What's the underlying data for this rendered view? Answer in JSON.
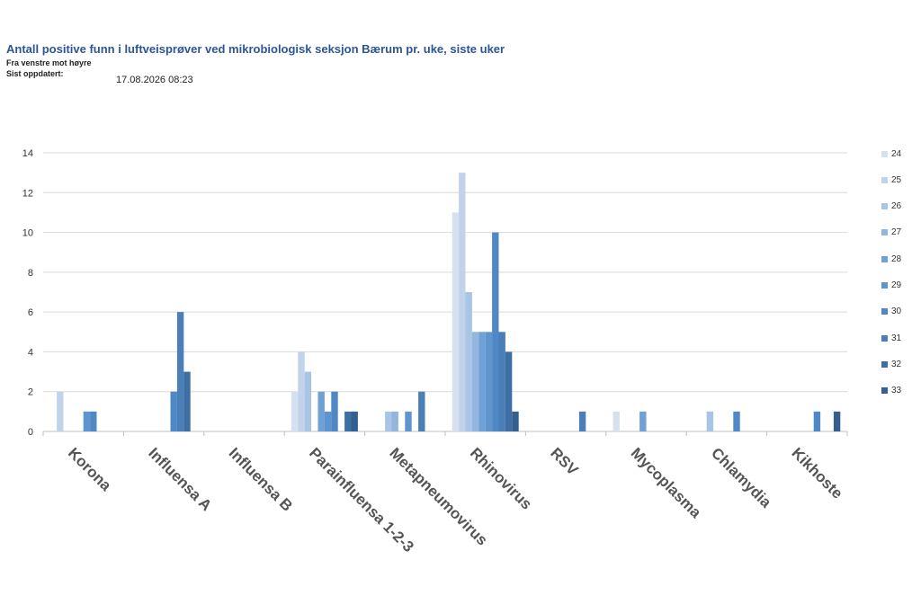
{
  "header": {
    "title": "Antall positive funn i luftveisprøver ved mikrobiologisk seksjon Bærum pr. uke, siste uker",
    "subtitle": "Fra venstre mot høyre",
    "updated_label": "Sist oppdatert:",
    "updated_value": "17.08.2026 08:23"
  },
  "chart_data": {
    "type": "bar",
    "categories": [
      "Korona",
      "Influensa A",
      "Influensa B",
      "Parainfluensa 1-2-3",
      "Metapneumovirus",
      "Rhinovirus",
      "RSV",
      "Mycoplasma",
      "Chlamydia",
      "Kikhoste"
    ],
    "ylim": [
      0,
      14
    ],
    "yticks": [
      0,
      2,
      4,
      6,
      8,
      10,
      12,
      14
    ],
    "grid": true,
    "legend_position": "right",
    "series": [
      {
        "name": "24",
        "color": "#d6e1ef",
        "values": [
          0,
          0,
          0,
          2,
          0,
          11,
          0,
          1,
          0,
          0
        ]
      },
      {
        "name": "25",
        "color": "#c0d3ea",
        "values": [
          2,
          0,
          0,
          4,
          0,
          13,
          0,
          0,
          0,
          0
        ]
      },
      {
        "name": "26",
        "color": "#a9c4e4",
        "values": [
          0,
          0,
          0,
          3,
          1,
          7,
          0,
          0,
          1,
          0
        ]
      },
      {
        "name": "27",
        "color": "#93b6de",
        "values": [
          0,
          0,
          0,
          0,
          1,
          5,
          0,
          0,
          0,
          0
        ]
      },
      {
        "name": "28",
        "color": "#6fa0d6",
        "values": [
          0,
          0,
          0,
          2,
          0,
          5,
          0,
          1,
          0,
          0
        ]
      },
      {
        "name": "29",
        "color": "#5e95cf",
        "values": [
          1,
          0,
          0,
          1,
          1,
          5,
          0,
          0,
          0,
          0
        ]
      },
      {
        "name": "30",
        "color": "#4f88c4",
        "values": [
          1,
          2,
          0,
          2,
          0,
          10,
          0,
          0,
          1,
          1
        ]
      },
      {
        "name": "31",
        "color": "#4a7fb8",
        "values": [
          0,
          6,
          0,
          0,
          2,
          5,
          1,
          0,
          0,
          0
        ]
      },
      {
        "name": "32",
        "color": "#3e6ea3",
        "values": [
          0,
          3,
          0,
          1,
          0,
          4,
          0,
          0,
          0,
          0
        ]
      },
      {
        "name": "33",
        "color": "#33608f",
        "values": [
          0,
          0,
          0,
          1,
          0,
          1,
          0,
          0,
          0,
          1
        ]
      }
    ]
  }
}
